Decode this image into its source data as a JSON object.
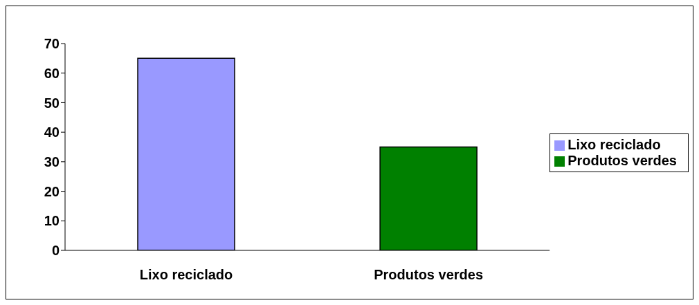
{
  "chart_data": {
    "type": "bar",
    "categories": [
      "Lixo reciclado",
      "Produtos verdes"
    ],
    "series": [
      {
        "name": "Lixo reciclado",
        "color": "#9999ff",
        "values": [
          65,
          null
        ]
      },
      {
        "name": "Produtos verdes",
        "color": "#008000",
        "values": [
          null,
          35
        ]
      }
    ],
    "ylim": [
      0,
      70
    ],
    "yticks": [
      0,
      10,
      20,
      30,
      40,
      50,
      60,
      70
    ],
    "grid": false,
    "legend": "right"
  }
}
